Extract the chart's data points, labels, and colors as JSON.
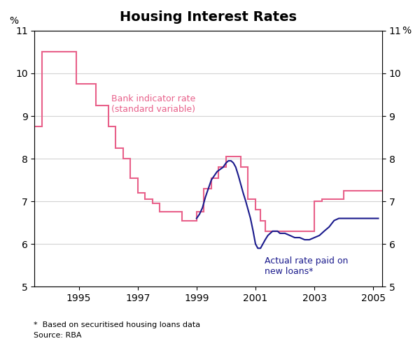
{
  "title": "Housing Interest Rates",
  "ylabel_left": "%",
  "ylabel_right": "%",
  "ylim": [
    5,
    11
  ],
  "yticks": [
    5,
    6,
    7,
    8,
    9,
    10,
    11
  ],
  "xlim_start": 1993.5,
  "xlim_end": 2005.3,
  "xtick_years": [
    1995,
    1997,
    1999,
    2001,
    2003,
    2005
  ],
  "footnote1": "*  Based on securitised housing loans data",
  "footnote2": "Source: RBA",
  "bank_label": "Bank indicator rate\n(standard variable)",
  "actual_label": "Actual rate paid on\nnew loans*",
  "bank_color": "#e8608a",
  "actual_color": "#1a1a8c",
  "bank_indicator": {
    "x": [
      1993.5,
      1993.75,
      1993.75,
      1994.0,
      1994.0,
      1994.92,
      1994.92,
      1995.58,
      1995.58,
      1996.0,
      1996.0,
      1996.25,
      1996.25,
      1996.5,
      1996.5,
      1996.75,
      1996.75,
      1997.0,
      1997.0,
      1997.25,
      1997.25,
      1997.5,
      1997.5,
      1997.75,
      1997.75,
      1998.5,
      1998.5,
      1999.0,
      1999.0,
      1999.25,
      1999.25,
      1999.5,
      1999.5,
      1999.75,
      1999.75,
      2000.0,
      2000.0,
      2000.25,
      2000.25,
      2000.5,
      2000.5,
      2000.75,
      2000.75,
      2001.0,
      2001.0,
      2001.17,
      2001.17,
      2001.33,
      2001.33,
      2001.5,
      2001.5,
      2001.67,
      2001.67,
      2001.83,
      2001.83,
      2002.0,
      2002.0,
      2002.25,
      2002.25,
      2003.0,
      2003.0,
      2003.25,
      2003.25,
      2003.5,
      2003.5,
      2003.75,
      2003.75,
      2004.0,
      2004.0,
      2004.25,
      2004.25,
      2005.3
    ],
    "y": [
      8.75,
      8.75,
      10.5,
      10.5,
      10.5,
      10.5,
      9.75,
      9.75,
      9.25,
      9.25,
      8.75,
      8.75,
      8.25,
      8.25,
      8.0,
      8.0,
      7.55,
      7.55,
      7.2,
      7.2,
      7.05,
      7.05,
      6.95,
      6.95,
      6.75,
      6.75,
      6.55,
      6.55,
      6.75,
      6.75,
      7.3,
      7.3,
      7.55,
      7.55,
      7.8,
      7.8,
      8.05,
      8.05,
      8.05,
      8.05,
      7.8,
      7.8,
      7.05,
      7.05,
      6.8,
      6.8,
      6.55,
      6.55,
      6.3,
      6.3,
      6.3,
      6.3,
      6.3,
      6.3,
      6.3,
      6.3,
      6.3,
      6.3,
      6.3,
      6.3,
      7.0,
      7.0,
      7.05,
      7.05,
      7.05,
      7.05,
      7.05,
      7.05,
      7.25,
      7.25,
      7.25,
      7.25
    ]
  },
  "actual_rate": {
    "x": [
      1999.0,
      1999.1,
      1999.2,
      1999.3,
      1999.4,
      1999.5,
      1999.6,
      1999.7,
      1999.8,
      1999.9,
      2000.0,
      2000.08,
      2000.17,
      2000.25,
      2000.33,
      2000.42,
      2000.5,
      2000.58,
      2000.67,
      2000.75,
      2000.83,
      2000.92,
      2001.0,
      2001.08,
      2001.17,
      2001.25,
      2001.33,
      2001.42,
      2001.5,
      2001.58,
      2001.67,
      2001.75,
      2001.83,
      2001.92,
      2002.0,
      2002.17,
      2002.33,
      2002.5,
      2002.67,
      2002.83,
      2003.0,
      2003.17,
      2003.33,
      2003.5,
      2003.67,
      2003.83,
      2004.0,
      2004.17,
      2004.33,
      2004.5,
      2004.67,
      2004.83,
      2005.0,
      2005.17
    ],
    "y": [
      6.6,
      6.7,
      6.85,
      7.1,
      7.3,
      7.5,
      7.6,
      7.7,
      7.75,
      7.8,
      7.9,
      7.95,
      7.95,
      7.9,
      7.8,
      7.6,
      7.4,
      7.2,
      7.0,
      6.8,
      6.6,
      6.3,
      6.0,
      5.9,
      5.9,
      6.0,
      6.1,
      6.2,
      6.25,
      6.3,
      6.3,
      6.3,
      6.25,
      6.25,
      6.25,
      6.2,
      6.15,
      6.15,
      6.1,
      6.1,
      6.15,
      6.2,
      6.3,
      6.4,
      6.55,
      6.6,
      6.6,
      6.6,
      6.6,
      6.6,
      6.6,
      6.6,
      6.6,
      6.6
    ]
  }
}
